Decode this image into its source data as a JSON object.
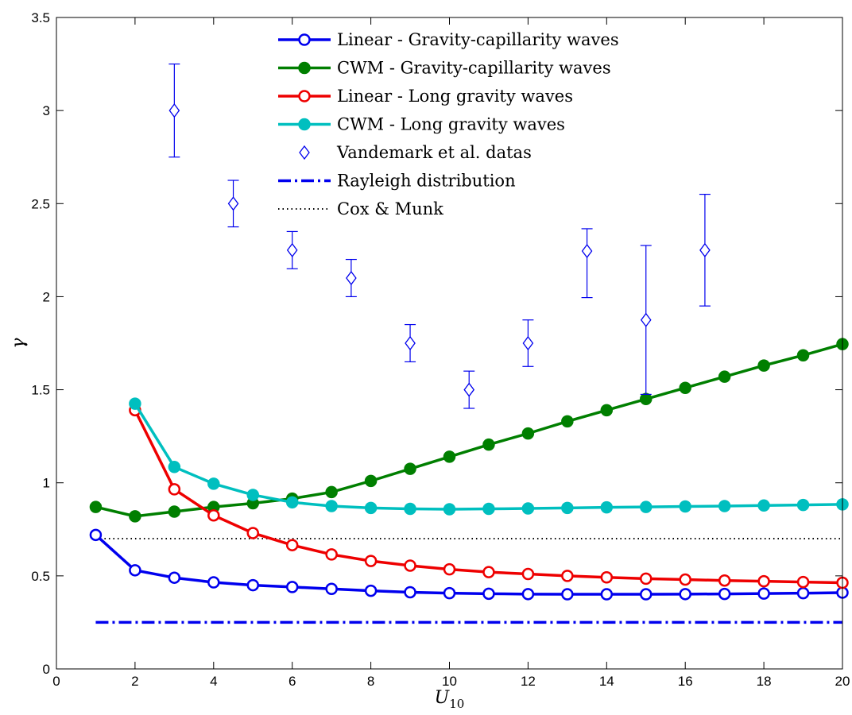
{
  "chart_data": {
    "type": "line",
    "xlabel": "U",
    "xlabel_sub": "10",
    "ylabel": "γ",
    "xlim": [
      0,
      20
    ],
    "ylim": [
      0,
      3.5
    ],
    "xticks": [
      "0",
      "2",
      "4",
      "6",
      "8",
      "10",
      "12",
      "14",
      "16",
      "18",
      "20"
    ],
    "yticks": [
      "0",
      "0.5",
      "1",
      "1.5",
      "2",
      "2.5",
      "3",
      "3.5"
    ],
    "grid": false,
    "legend_position": "top-center",
    "series": [
      {
        "name": "Linear - Gravity-capillarity waves",
        "color": "#0000ee",
        "marker": "open-circle",
        "x": [
          1,
          2,
          3,
          4,
          5,
          6,
          7,
          8,
          9,
          10,
          11,
          12,
          13,
          14,
          15,
          16,
          17,
          18,
          19,
          20
        ],
        "y": [
          0.72,
          0.53,
          0.49,
          0.465,
          0.45,
          0.44,
          0.43,
          0.42,
          0.412,
          0.407,
          0.404,
          0.402,
          0.401,
          0.401,
          0.401,
          0.402,
          0.403,
          0.405,
          0.407,
          0.41
        ]
      },
      {
        "name": "CWM - Gravity-capillarity waves",
        "color": "#007f00",
        "marker": "filled-circle",
        "x": [
          1,
          2,
          3,
          4,
          5,
          6,
          7,
          8,
          9,
          10,
          11,
          12,
          13,
          14,
          15,
          16,
          17,
          18,
          19,
          20
        ],
        "y": [
          0.87,
          0.82,
          0.845,
          0.87,
          0.89,
          0.915,
          0.95,
          1.01,
          1.075,
          1.14,
          1.205,
          1.265,
          1.33,
          1.39,
          1.45,
          1.51,
          1.57,
          1.63,
          1.685,
          1.745
        ]
      },
      {
        "name": "Linear - Long gravity waves",
        "color": "#ee0000",
        "marker": "open-circle",
        "x": [
          2,
          3,
          4,
          5,
          6,
          7,
          8,
          9,
          10,
          11,
          12,
          13,
          14,
          15,
          16,
          17,
          18,
          19,
          20
        ],
        "y": [
          1.39,
          0.965,
          0.825,
          0.73,
          0.665,
          0.615,
          0.58,
          0.555,
          0.535,
          0.52,
          0.51,
          0.5,
          0.492,
          0.485,
          0.48,
          0.475,
          0.471,
          0.467,
          0.463
        ]
      },
      {
        "name": "CWM - Long gravity waves",
        "color": "#00bfbf",
        "marker": "filled-circle",
        "x": [
          2,
          3,
          4,
          5,
          6,
          7,
          8,
          9,
          10,
          11,
          12,
          13,
          14,
          15,
          16,
          17,
          18,
          19,
          20
        ],
        "y": [
          1.425,
          1.085,
          0.995,
          0.935,
          0.895,
          0.875,
          0.865,
          0.86,
          0.858,
          0.86,
          0.862,
          0.865,
          0.868,
          0.87,
          0.873,
          0.875,
          0.878,
          0.881,
          0.884
        ]
      }
    ],
    "scatter": {
      "name": "Vandemark et al. datas",
      "color": "#0000ee",
      "marker": "open-diamond",
      "points": [
        {
          "x": 3,
          "y": 3.0,
          "lo": 2.75,
          "hi": 3.25
        },
        {
          "x": 4.5,
          "y": 2.5,
          "lo": 2.375,
          "hi": 2.625
        },
        {
          "x": 6,
          "y": 2.25,
          "lo": 2.15,
          "hi": 2.35
        },
        {
          "x": 7.5,
          "y": 2.1,
          "lo": 2.0,
          "hi": 2.2
        },
        {
          "x": 9,
          "y": 1.75,
          "lo": 1.65,
          "hi": 1.85
        },
        {
          "x": 10.5,
          "y": 1.5,
          "lo": 1.4,
          "hi": 1.6
        },
        {
          "x": 12,
          "y": 1.75,
          "lo": 1.625,
          "hi": 1.875
        },
        {
          "x": 13.5,
          "y": 2.245,
          "lo": 1.995,
          "hi": 2.365
        },
        {
          "x": 15,
          "y": 1.875,
          "lo": 1.475,
          "hi": 2.275
        },
        {
          "x": 16.5,
          "y": 2.25,
          "lo": 1.95,
          "hi": 2.55
        }
      ]
    },
    "reference_lines": [
      {
        "name": "Rayleigh distribution",
        "color": "#0000ee",
        "style": "dash-dot",
        "x": [
          1,
          20
        ],
        "y": 0.25
      },
      {
        "name": "Cox & Munk",
        "color": "#000000",
        "style": "dotted",
        "x": [
          1,
          20
        ],
        "y": 0.7
      }
    ]
  }
}
